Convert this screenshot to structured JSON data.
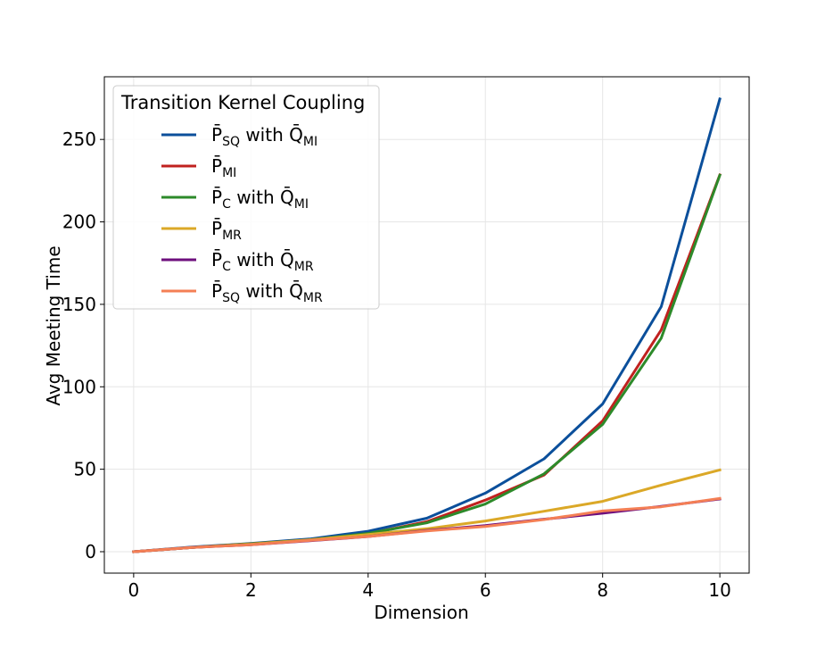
{
  "chart_data": {
    "type": "line",
    "xlabel": "Dimension",
    "ylabel": "Avg Meeting Time",
    "xlim": [
      -0.5,
      10.5
    ],
    "ylim": [
      -13,
      288
    ],
    "xticks": [
      0,
      2,
      4,
      6,
      8,
      10
    ],
    "yticks": [
      0,
      50,
      100,
      150,
      200,
      250
    ],
    "grid": true,
    "legend": {
      "title": "Transition Kernel Coupling",
      "placement": "top-left"
    },
    "x": [
      0,
      1,
      2,
      3,
      4,
      5,
      6,
      7,
      8,
      9,
      10
    ],
    "series": [
      {
        "name": "P̄SQ with Q̄MI",
        "label_parts": [
          {
            "t": "P̄"
          },
          {
            "t": "SQ",
            "sub": true
          },
          {
            "t": " with Q̄"
          },
          {
            "t": "MI",
            "sub": true
          }
        ],
        "color": "#0b4f9b",
        "values": [
          0,
          2.8,
          5,
          7.7,
          12.4,
          20.3,
          35.5,
          56.3,
          89.6,
          148.6,
          274.5
        ]
      },
      {
        "name": "P̄MI",
        "label_parts": [
          {
            "t": "P̄"
          },
          {
            "t": "MI",
            "sub": true
          }
        ],
        "color": "#c0211f",
        "values": [
          0,
          2.6,
          4.8,
          7.2,
          10.8,
          18.2,
          31.3,
          46.5,
          79.3,
          134.5,
          228.5
        ]
      },
      {
        "name": "P̄C with Q̄MI",
        "label_parts": [
          {
            "t": "P̄"
          },
          {
            "t": "C",
            "sub": true
          },
          {
            "t": " with Q̄"
          },
          {
            "t": "MI",
            "sub": true
          }
        ],
        "color": "#2d8a2a",
        "values": [
          0,
          2.6,
          4.8,
          7.2,
          11.1,
          17.5,
          28.9,
          47.2,
          77.2,
          129.5,
          228.3
        ]
      },
      {
        "name": "P̄MR",
        "label_parts": [
          {
            "t": "P̄"
          },
          {
            "t": "MR",
            "sub": true
          }
        ],
        "color": "#dba827",
        "values": [
          0,
          2.6,
          4.6,
          7.2,
          10.4,
          13.9,
          18.6,
          24.5,
          30.5,
          40.4,
          49.6
        ]
      },
      {
        "name": "P̄C with Q̄MR",
        "label_parts": [
          {
            "t": "P̄"
          },
          {
            "t": "C",
            "sub": true
          },
          {
            "t": " with Q̄"
          },
          {
            "t": "MR",
            "sub": true
          }
        ],
        "color": "#6e0f7d",
        "values": [
          0,
          2.6,
          4.2,
          6.6,
          9.2,
          12.8,
          15.8,
          19.7,
          23.3,
          27.5,
          32
        ]
      },
      {
        "name": "P̄SQ with Q̄MR",
        "label_parts": [
          {
            "t": "P̄"
          },
          {
            "t": "SQ",
            "sub": true
          },
          {
            "t": " with Q̄"
          },
          {
            "t": "MR",
            "sub": true
          }
        ],
        "color": "#f47f55",
        "values": [
          0,
          2.6,
          4.2,
          6.8,
          9.2,
          12.6,
          15.3,
          19.5,
          24.7,
          27.2,
          32.3
        ]
      }
    ]
  }
}
